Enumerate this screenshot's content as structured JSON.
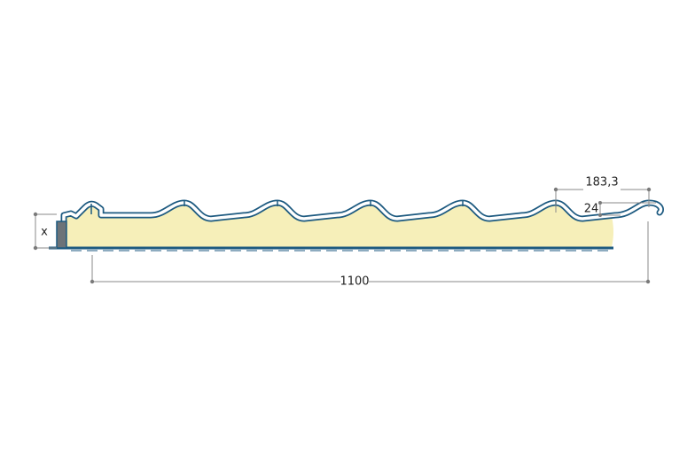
{
  "dimensions": {
    "wave_pitch": "183,3",
    "wave_height": "24",
    "width": "1100",
    "thickness": "x"
  }
}
